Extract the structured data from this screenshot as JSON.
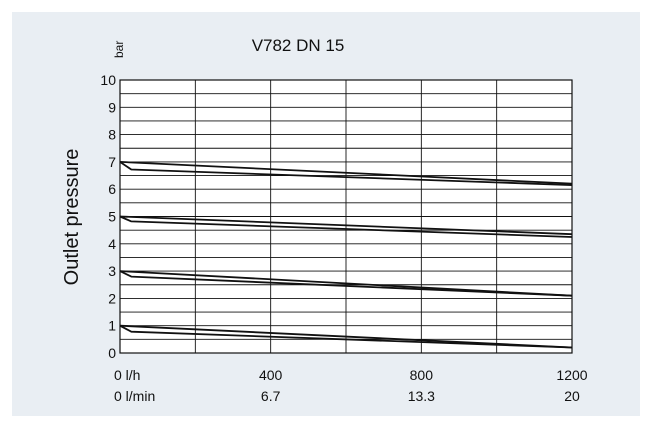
{
  "chart_data": {
    "type": "line",
    "title": "V782 DN 15",
    "y_unit": "bar",
    "ylabel": "Outlet pressure",
    "xlim": [
      0,
      1200
    ],
    "ylim": [
      0,
      10
    ],
    "grid": true,
    "y_ticks": [
      "0",
      "1",
      "2",
      "3",
      "4",
      "5",
      "6",
      "7",
      "8",
      "9",
      "10"
    ],
    "x_ticks": [
      {
        "value": 0,
        "primary": "0 l/h",
        "secondary": "0 l/min"
      },
      {
        "value": 400,
        "primary": "400",
        "secondary": "6.7"
      },
      {
        "value": 800,
        "primary": "800",
        "secondary": "13.3"
      },
      {
        "value": 1200,
        "primary": "1200",
        "secondary": "20"
      }
    ],
    "x_grid": [
      0,
      200,
      400,
      600,
      800,
      1000,
      1200
    ],
    "y_grid": [
      0,
      0.5,
      1,
      1.5,
      2,
      2.5,
      3,
      3.5,
      4,
      4.5,
      5,
      5.5,
      6,
      6.5,
      7,
      7.5,
      8,
      8.5,
      9,
      9.5,
      10
    ],
    "series": [
      {
        "x": [
          0,
          1200
        ],
        "y": [
          7.0,
          6.2
        ]
      },
      {
        "x": [
          0,
          30,
          1200
        ],
        "y": [
          7.0,
          6.72,
          6.15
        ]
      },
      {
        "x": [
          0,
          1200
        ],
        "y": [
          5.0,
          4.35
        ]
      },
      {
        "x": [
          0,
          30,
          1200
        ],
        "y": [
          5.0,
          4.82,
          4.25
        ]
      },
      {
        "x": [
          0,
          1200
        ],
        "y": [
          3.0,
          2.1
        ]
      },
      {
        "x": [
          0,
          30,
          1200
        ],
        "y": [
          3.0,
          2.8,
          2.1
        ]
      },
      {
        "x": [
          0,
          1200
        ],
        "y": [
          1.0,
          0.2
        ]
      },
      {
        "x": [
          0,
          30,
          1200
        ],
        "y": [
          1.0,
          0.78,
          0.2
        ]
      }
    ],
    "line_color": "#111111"
  }
}
